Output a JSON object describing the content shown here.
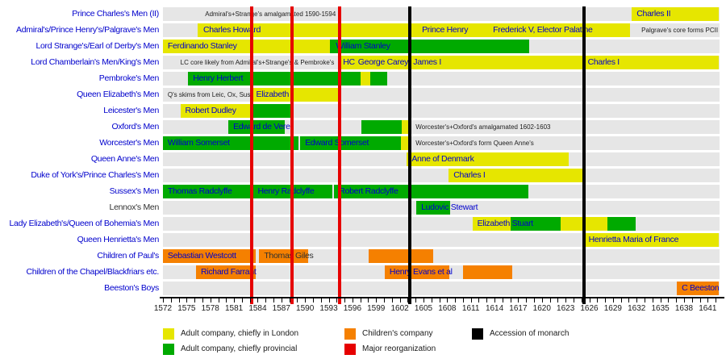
{
  "colors": {
    "london": "#e6e600",
    "provincial": "#00aa00",
    "children": "#f58000",
    "reorg": "#e60000",
    "monarch": "#000000",
    "track": "#e6e6e6",
    "link_blue": "#0000cc",
    "text_black": "#303030"
  },
  "legend": [
    {
      "key": "london",
      "label": "Adult company, chiefly in London",
      "col": 0,
      "row": 0
    },
    {
      "key": "provincial",
      "label": "Adult company, chiefly provincial",
      "col": 0,
      "row": 1
    },
    {
      "key": "children",
      "label": "Children's company",
      "col": 1,
      "row": 0
    },
    {
      "key": "reorg",
      "label": "Major reorganization",
      "col": 1,
      "row": 1
    },
    {
      "key": "monarch",
      "label": "Accession of monarch",
      "col": 2,
      "row": 0
    }
  ],
  "chart_data": {
    "type": "gantt-timeline",
    "title": "",
    "x_axis": {
      "start": 1572,
      "end": 1642.5,
      "tick_interval": 1,
      "label_interval": 3,
      "tick_labels": [
        1572,
        1575,
        1578,
        1581,
        1584,
        1587,
        1590,
        1593,
        1596,
        1599,
        1602,
        1605,
        1608,
        1611,
        1614,
        1617,
        1620,
        1623,
        1626,
        1629,
        1632,
        1635,
        1638,
        1641
      ]
    },
    "event_lines": {
      "major_reorganization": [
        1583.2,
        1588.3,
        1594.4
      ],
      "accession_of_monarch": [
        1603.3,
        1625.3
      ]
    },
    "rows": [
      {
        "label": "Prince Charles's Men (II)",
        "label_color": "blue",
        "segments": [
          {
            "start": 1631.4,
            "end": 1642.4,
            "type": "london"
          }
        ],
        "bar_labels": [
          {
            "text": "Charles II",
            "year": 1631.8,
            "color": "blue"
          }
        ],
        "notes": [
          {
            "text": "Admiral's+Strange's amalgamated 1590-1594",
            "year": 1594.2,
            "align": "right"
          }
        ]
      },
      {
        "label": "Admiral's/Prince Henry's/Palgrave's Men",
        "label_color": "blue",
        "segments": [
          {
            "start": 1576.4,
            "end": 1631.2,
            "type": "london"
          }
        ],
        "bar_labels": [
          {
            "text": "Charles Howard",
            "year": 1576.9,
            "color": "blue"
          },
          {
            "text": "Prince Henry",
            "year": 1604.6,
            "color": "blue"
          },
          {
            "text": "Frederick V, Elector Palatine",
            "year": 1613.6,
            "color": "blue"
          }
        ],
        "notes": [
          {
            "text": "Palgrave's core forms PCII",
            "year": 1632.3,
            "align": "left"
          }
        ]
      },
      {
        "label": "Lord Strange's/Earl of Derby's Men",
        "label_color": "blue",
        "segments": [
          {
            "start": 1572.0,
            "end": 1593.2,
            "type": "london"
          },
          {
            "start": 1593.2,
            "end": 1618.4,
            "type": "provincial"
          }
        ],
        "bar_labels": [
          {
            "text": "Ferdinando Stanley",
            "year": 1572.4,
            "color": "blue"
          },
          {
            "text": "William Stanley",
            "year": 1593.7,
            "color": "blue"
          }
        ],
        "notes": []
      },
      {
        "label": "Lord Chamberlain's Men/King's Men",
        "label_color": "blue",
        "segments": [
          {
            "start": 1594.3,
            "end": 1642.4,
            "type": "london"
          }
        ],
        "bar_labels": [
          {
            "text": "HC",
            "year": 1594.6,
            "color": "blue"
          },
          {
            "text": "George Carey",
            "year": 1596.5,
            "color": "blue"
          },
          {
            "text": "James I",
            "year": 1603.5,
            "color": "blue"
          },
          {
            "text": "Charles I",
            "year": 1625.6,
            "color": "blue"
          }
        ],
        "notes": [
          {
            "text": "LC core likely from Admiral's+Strange's & Pembroke's",
            "year": 1594.0,
            "align": "right"
          }
        ]
      },
      {
        "label": "Pembroke's Men",
        "label_color": "blue",
        "segments": [
          {
            "start": 1575.2,
            "end": 1597.0,
            "type": "provincial"
          },
          {
            "start": 1597.0,
            "end": 1598.3,
            "type": "london"
          },
          {
            "start": 1598.3,
            "end": 1600.4,
            "type": "provincial"
          }
        ],
        "bar_labels": [
          {
            "text": "Henry Herbert",
            "year": 1575.6,
            "color": "blue"
          }
        ],
        "notes": []
      },
      {
        "label": "Queen Elizabeth's Men",
        "label_color": "blue",
        "segments": [
          {
            "start": 1583.2,
            "end": 1594.3,
            "type": "london"
          }
        ],
        "bar_labels": [
          {
            "text": "Elizabeth I",
            "year": 1583.6,
            "color": "blue"
          }
        ],
        "notes": [
          {
            "text": "Q's skims from Leic, Ox, Sus",
            "year": 1572.3,
            "align": "left"
          }
        ]
      },
      {
        "label": "Leicester's Men",
        "label_color": "blue",
        "segments": [
          {
            "start": 1574.2,
            "end": 1583.2,
            "type": "london"
          },
          {
            "start": 1583.2,
            "end": 1588.4,
            "type": "provincial"
          }
        ],
        "bar_labels": [
          {
            "text": "Robert Dudley",
            "year": 1574.6,
            "color": "blue"
          }
        ],
        "notes": []
      },
      {
        "label": "Oxford's Men",
        "label_color": "blue",
        "segments": [
          {
            "start": 1580.3,
            "end": 1587.4,
            "type": "provincial"
          },
          {
            "start": 1597.1,
            "end": 1602.2,
            "type": "provincial"
          },
          {
            "start": 1602.2,
            "end": 1603.2,
            "type": "london"
          }
        ],
        "bar_labels": [
          {
            "text": "Edward de Vere",
            "year": 1580.7,
            "color": "blue"
          }
        ],
        "notes": [
          {
            "text": "Worcester's+Oxford's amalgamated 1602-1603",
            "year": 1603.7,
            "align": "left"
          }
        ]
      },
      {
        "label": "Worcester's Men",
        "label_color": "blue",
        "segments": [
          {
            "start": 1572.0,
            "end": 1589.2,
            "type": "provincial"
          },
          {
            "start": 1589.4,
            "end": 1602.1,
            "type": "provincial"
          },
          {
            "start": 1602.1,
            "end": 1603.2,
            "type": "london"
          }
        ],
        "bar_labels": [
          {
            "text": "William Somerset",
            "year": 1572.4,
            "color": "blue"
          },
          {
            "text": "Edward Somerset",
            "year": 1589.8,
            "color": "blue"
          }
        ],
        "notes": [
          {
            "text": "Worcester's+Oxford's form Queen Anne's",
            "year": 1603.7,
            "align": "left"
          }
        ]
      },
      {
        "label": "Queen Anne's Men",
        "label_color": "blue",
        "segments": [
          {
            "start": 1602.9,
            "end": 1623.4,
            "type": "london"
          }
        ],
        "bar_labels": [
          {
            "text": "Anne of Denmark",
            "year": 1603.3,
            "color": "blue"
          }
        ],
        "notes": []
      },
      {
        "label": "Duke of York's/Prince Charles's Men",
        "label_color": "blue",
        "segments": [
          {
            "start": 1608.2,
            "end": 1625.1,
            "type": "london"
          }
        ],
        "bar_labels": [
          {
            "text": "Charles I",
            "year": 1608.6,
            "color": "blue"
          }
        ],
        "notes": []
      },
      {
        "label": "Sussex's Men",
        "label_color": "blue",
        "segments": [
          {
            "start": 1572.0,
            "end": 1583.2,
            "type": "provincial"
          },
          {
            "start": 1583.4,
            "end": 1593.5,
            "type": "provincial"
          },
          {
            "start": 1593.7,
            "end": 1618.3,
            "type": "provincial"
          }
        ],
        "bar_labels": [
          {
            "text": "Thomas Radclyffe",
            "year": 1572.4,
            "color": "blue"
          },
          {
            "text": "Henry Radclyffe",
            "year": 1583.8,
            "color": "blue"
          },
          {
            "text": "Robert Radclyffe",
            "year": 1594.1,
            "color": "blue"
          }
        ],
        "notes": []
      },
      {
        "label": "Lennox's Men",
        "label_color": "black",
        "segments": [
          {
            "start": 1604.1,
            "end": 1608.4,
            "type": "provincial"
          }
        ],
        "bar_labels": [
          {
            "text": "Ludovic Stewart",
            "year": 1604.5,
            "color": "blue"
          }
        ],
        "notes": []
      },
      {
        "label": "Lady Elizabeth's/Queen of Bohemia's Men",
        "label_color": "blue",
        "segments": [
          {
            "start": 1611.2,
            "end": 1616.0,
            "type": "london"
          },
          {
            "start": 1616.0,
            "end": 1622.4,
            "type": "provincial"
          },
          {
            "start": 1622.4,
            "end": 1628.3,
            "type": "london"
          },
          {
            "start": 1628.3,
            "end": 1631.9,
            "type": "provincial"
          }
        ],
        "bar_labels": [
          {
            "text": "Elizabeth Stuart",
            "year": 1611.6,
            "color": "blue"
          }
        ],
        "notes": []
      },
      {
        "label": "Queen Henrietta's Men",
        "label_color": "blue",
        "segments": [
          {
            "start": 1625.3,
            "end": 1642.4,
            "type": "london"
          }
        ],
        "bar_labels": [
          {
            "text": "Henrietta Maria of France",
            "year": 1625.7,
            "color": "blue"
          }
        ],
        "notes": []
      },
      {
        "label": "Children of Paul's",
        "label_color": "blue",
        "segments": [
          {
            "start": 1572.0,
            "end": 1583.7,
            "type": "children"
          },
          {
            "start": 1584.2,
            "end": 1590.4,
            "type": "children"
          },
          {
            "start": 1598.1,
            "end": 1606.2,
            "type": "children"
          }
        ],
        "bar_labels": [
          {
            "text": "Sebastian Westcott",
            "year": 1572.4,
            "color": "blue"
          },
          {
            "text": "Thomas Giles",
            "year": 1584.6,
            "color": "black"
          }
        ],
        "notes": []
      },
      {
        "label": "Children of the Chapel/Blackfriars etc.",
        "label_color": "blue",
        "segments": [
          {
            "start": 1576.2,
            "end": 1583.8,
            "type": "children"
          },
          {
            "start": 1600.1,
            "end": 1608.3,
            "type": "children"
          },
          {
            "start": 1610.0,
            "end": 1616.2,
            "type": "children"
          }
        ],
        "bar_labels": [
          {
            "text": "Richard Farrant",
            "year": 1576.6,
            "color": "blue"
          },
          {
            "text": "Henry Evans et al",
            "year": 1600.5,
            "color": "blue"
          }
        ],
        "notes": []
      },
      {
        "label": "Beeston's Boys",
        "label_color": "blue",
        "segments": [
          {
            "start": 1637.1,
            "end": 1642.4,
            "type": "children"
          }
        ],
        "bar_labels": [
          {
            "text": "C Beeston",
            "year": 1637.5,
            "color": "blue"
          }
        ],
        "notes": []
      }
    ]
  }
}
